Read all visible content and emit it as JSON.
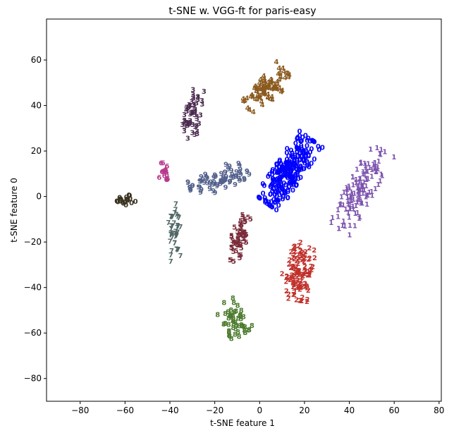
{
  "chart_data": {
    "type": "scatter",
    "title": "t-SNE w. VGG-ft for paris-easy",
    "xlabel": "t-SNE feature 1",
    "ylabel": "t-SNE feature 0",
    "xlim": [
      -95,
      81
    ],
    "ylim": [
      -90,
      78
    ],
    "xticks": [
      -80,
      -60,
      -40,
      -20,
      0,
      20,
      40,
      60,
      80
    ],
    "yticks": [
      -80,
      -60,
      -40,
      -20,
      0,
      20,
      40,
      60
    ],
    "grid": false,
    "marker": "digit",
    "series": [
      {
        "label": "0",
        "color": "#0000ff",
        "center": [
          13,
          11
        ],
        "spread": [
          3.5,
          9.5
        ],
        "rotation": 55,
        "n": 260
      },
      {
        "label": "1",
        "color": "#7b52ae",
        "center": [
          45,
          3
        ],
        "spread": [
          3.2,
          11
        ],
        "rotation": 60,
        "n": 130
      },
      {
        "label": "2",
        "color": "#c0302a",
        "center": [
          18,
          -33
        ],
        "spread": [
          3,
          7
        ],
        "rotation": 80,
        "n": 110
      },
      {
        "label": "3",
        "color": "#4b2a4f",
        "center": [
          -30,
          36
        ],
        "spread": [
          2,
          6
        ],
        "rotation": 80,
        "n": 55
      },
      {
        "label": "4",
        "color": "#8b5a1e",
        "center": [
          3,
          47
        ],
        "spread": [
          3,
          6.5
        ],
        "rotation": 45,
        "n": 90
      },
      {
        "label": "5",
        "color": "#7a2c3a",
        "center": [
          -9,
          -18
        ],
        "spread": [
          2,
          6
        ],
        "rotation": 70,
        "n": 55
      },
      {
        "label": "6",
        "color": "#b8388c",
        "center": [
          -43,
          11
        ],
        "spread": [
          1.2,
          2
        ],
        "rotation": 90,
        "n": 15
      },
      {
        "label": "7",
        "color": "#4f6866",
        "center": [
          -38,
          -16
        ],
        "spread": [
          1.5,
          7
        ],
        "rotation": 90,
        "n": 40
      },
      {
        "label": "8",
        "color": "#4a7a2b",
        "center": [
          -12,
          -54
        ],
        "spread": [
          3,
          4.5
        ],
        "rotation": -55,
        "n": 50
      },
      {
        "label": "9",
        "color": "#52608c",
        "center": [
          -18,
          7
        ],
        "spread": [
          2.5,
          7.5
        ],
        "rotation": 18,
        "n": 75
      },
      {
        "label": "0",
        "color": "#3a3220",
        "center": [
          -60,
          -2
        ],
        "spread": [
          1.2,
          2.5
        ],
        "rotation": 10,
        "n": 20
      }
    ],
    "outliers": [
      {
        "label": "9",
        "color": "#52608c",
        "x": -15,
        "y": 14
      },
      {
        "label": "2",
        "color": "#c0302a",
        "x": 10,
        "y": -34
      },
      {
        "label": "1",
        "color": "#7b52ae",
        "x": 39,
        "y": 3
      },
      {
        "label": "3",
        "color": "#4b2a4f",
        "x": -30,
        "y": 28
      }
    ]
  }
}
